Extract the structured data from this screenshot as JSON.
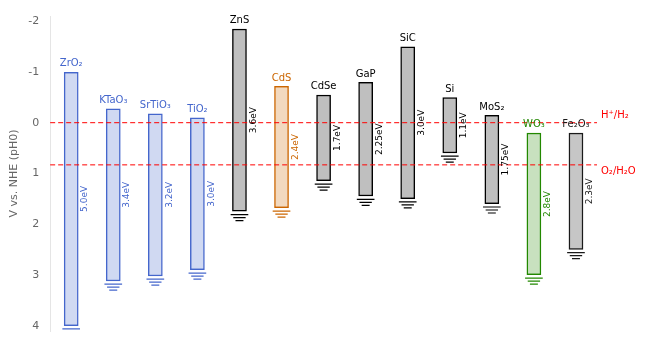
{
  "chart_data": {
    "type": "bar",
    "ylabel": "V vs. NHE (pH0)",
    "categories": [
      "ZrO₂",
      "KTaO₃",
      "SrTiO₃",
      "TiO₂",
      "ZnS",
      "CdS",
      "CdSe",
      "GaP",
      "SiC",
      "Si",
      "MoS₂",
      "WO₃",
      "Fe₂O₃"
    ],
    "values": [
      [
        -1.0,
        4.0
      ],
      [
        -0.28,
        3.12
      ],
      [
        -0.18,
        3.02
      ],
      [
        -0.1,
        2.9
      ],
      [
        -1.85,
        1.75
      ],
      [
        -0.72,
        1.68
      ],
      [
        -0.55,
        1.15
      ],
      [
        -0.8,
        1.45
      ],
      [
        -1.5,
        1.5
      ],
      [
        -0.5,
        0.6
      ],
      [
        -0.15,
        1.6
      ],
      [
        0.2,
        3.0
      ],
      [
        0.2,
        2.5
      ]
    ],
    "colors": [
      "#4466cc",
      "#4466cc",
      "#4466cc",
      "#4466cc",
      "#000000",
      "#cc6600",
      "#000000",
      "#000000",
      "#000000",
      "#000000",
      "#000000",
      "#228800",
      "#1a1a1a"
    ],
    "gap_labels": [
      "5.0eV",
      "3.4eV",
      "3.2eV",
      "3.0eV",
      "3.6eV",
      "2.4eV",
      "1.7eV",
      "2.25eV",
      "3.0eV",
      "1.1eV",
      "1.75eV",
      "2.8eV",
      "2.3eV"
    ],
    "hlines": [
      {
        "value": 0.0,
        "label": "H⁺/H₂",
        "color": "red"
      },
      {
        "value": 0.83,
        "label": "O₂/H₂O",
        "color": "red"
      }
    ],
    "ylim": [
      4.1,
      -2.1
    ],
    "yticks": [
      -2,
      -1,
      0,
      1,
      2,
      3,
      4
    ],
    "grid": false,
    "tick_labels": "y"
  }
}
